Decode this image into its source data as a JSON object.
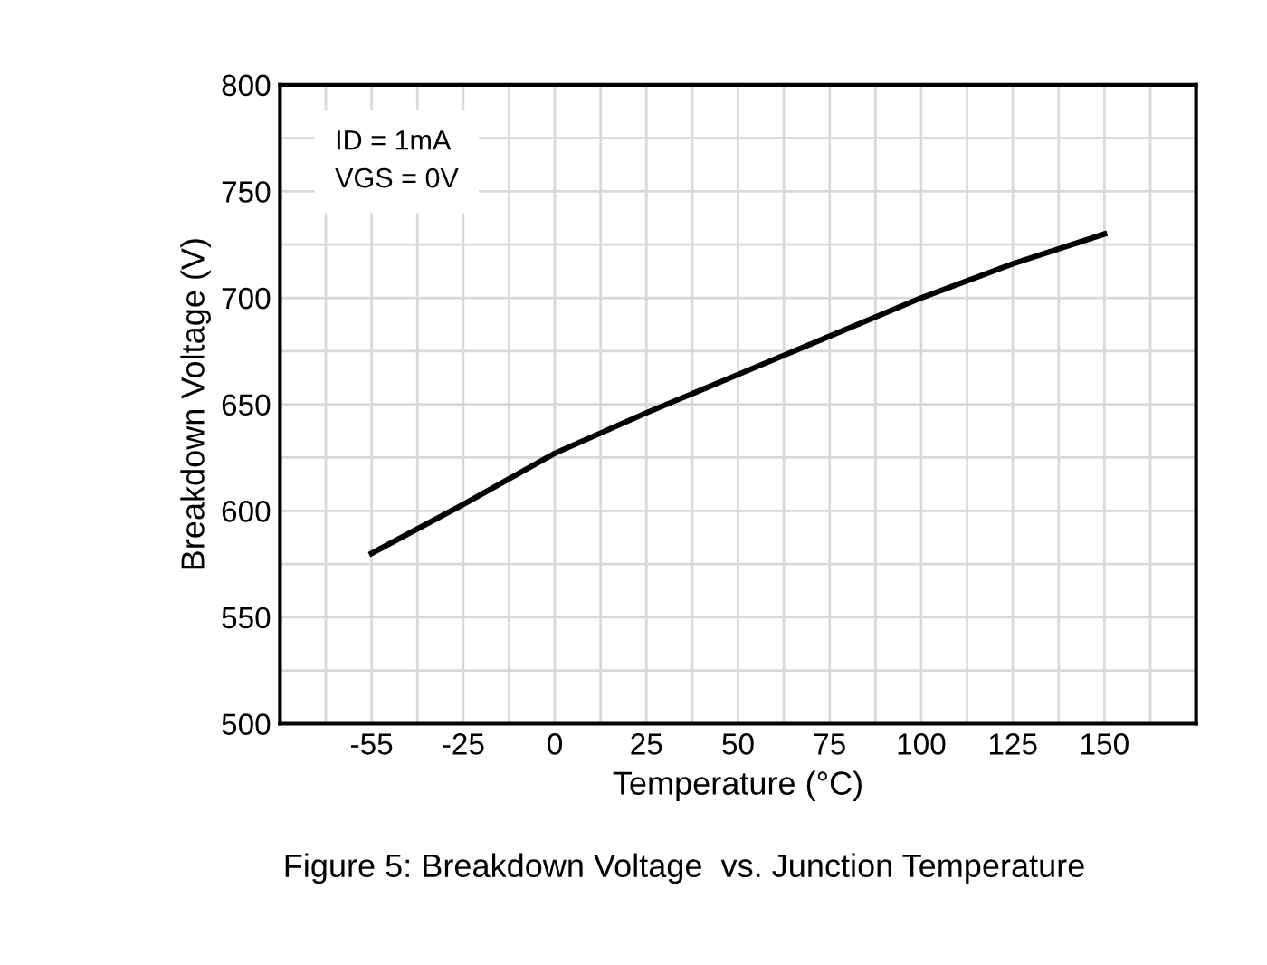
{
  "chart_data": {
    "type": "line",
    "title": "Figure 5: Breakdown Voltage  vs. Junction Temperature",
    "xlabel": "Temperature (°C)",
    "ylabel": "Breakdown Voltage (V)",
    "categories": [
      "-55",
      "-25",
      "0",
      "25",
      "50",
      "75",
      "100",
      "125",
      "150"
    ],
    "series": [
      {
        "color": "#000000",
        "values": [
          580,
          603,
          627,
          646,
          664,
          682,
          700,
          716,
          730
        ]
      }
    ],
    "ylim": [
      500,
      800
    ],
    "yticks": [
      500,
      550,
      600,
      650,
      700,
      750,
      800
    ],
    "grid": true,
    "marker": "none",
    "line_style": "solid",
    "annotations": [
      "ID = 1mA\nVGS = 0V"
    ]
  }
}
